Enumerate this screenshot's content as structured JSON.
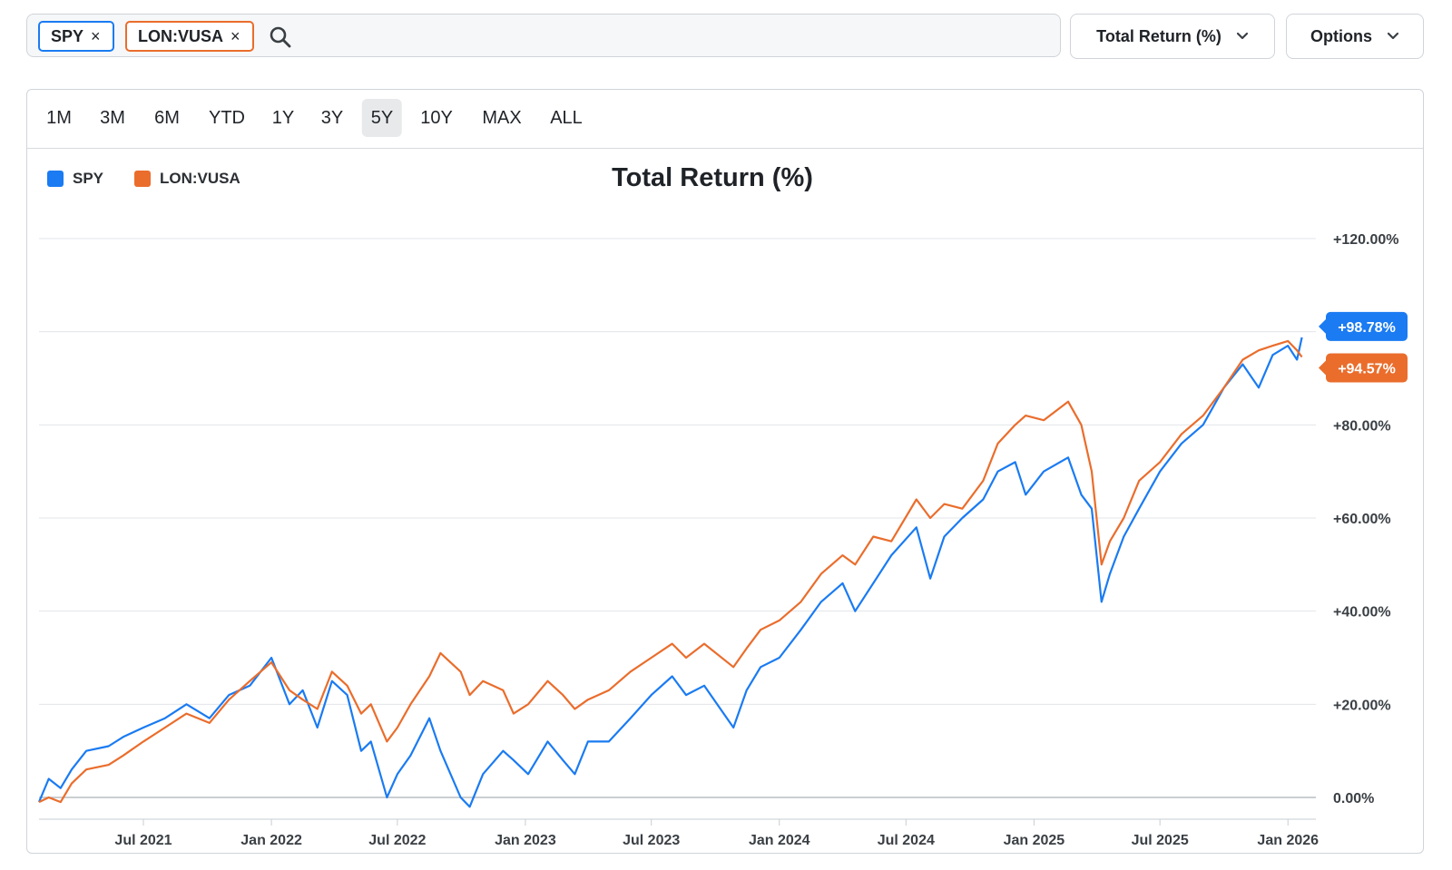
{
  "search": {
    "chips": [
      {
        "label": "SPY",
        "remove": "×"
      },
      {
        "label": "LON:VUSA",
        "remove": "×"
      }
    ]
  },
  "toolbar": {
    "metric_label": "Total Return (%)",
    "options_label": "Options"
  },
  "ranges": {
    "items": [
      "1M",
      "3M",
      "6M",
      "YTD",
      "1Y",
      "3Y",
      "5Y",
      "10Y",
      "MAX",
      "ALL"
    ],
    "active": "5Y"
  },
  "colors": {
    "spy": "#1a7bf2",
    "vusa": "#ea6d2c"
  },
  "chart_data": {
    "type": "line",
    "title": "Total Return (%)",
    "legend": [
      "SPY",
      "LON:VUSA"
    ],
    "legend_position": "top-left",
    "grid": true,
    "ylim": [
      -5,
      125
    ],
    "yticks": [
      0,
      20,
      40,
      60,
      80,
      100,
      120
    ],
    "ytick_labels": [
      "0.00%",
      "+20.00%",
      "+40.00%",
      "+60.00%",
      "+80.00%",
      "",
      "+120.00%"
    ],
    "x_range": [
      "2021-02-01",
      "2026-02-01"
    ],
    "xticks": [
      "2021-07-01",
      "2022-01-01",
      "2022-07-01",
      "2023-01-01",
      "2023-07-01",
      "2024-01-01",
      "2024-07-01",
      "2025-01-01",
      "2025-07-01",
      "2026-01-01"
    ],
    "xtick_labels": [
      "Jul 2021",
      "Jan 2022",
      "Jul 2022",
      "Jan 2023",
      "Jul 2023",
      "Jan 2024",
      "Jul 2024",
      "Jan 2025",
      "Jul 2025",
      "Jan 2026"
    ],
    "series": [
      {
        "name": "SPY",
        "last_label": "+98.78%",
        "points": [
          [
            "2021-02-01",
            -1
          ],
          [
            "2021-02-15",
            4
          ],
          [
            "2021-03-04",
            2
          ],
          [
            "2021-03-20",
            6
          ],
          [
            "2021-04-10",
            10
          ],
          [
            "2021-05-12",
            11
          ],
          [
            "2021-06-02",
            13
          ],
          [
            "2021-07-01",
            15
          ],
          [
            "2021-08-01",
            17
          ],
          [
            "2021-09-01",
            20
          ],
          [
            "2021-10-04",
            17
          ],
          [
            "2021-11-01",
            22
          ],
          [
            "2021-12-01",
            24
          ],
          [
            "2022-01-01",
            30
          ],
          [
            "2022-01-27",
            20
          ],
          [
            "2022-02-15",
            23
          ],
          [
            "2022-03-08",
            15
          ],
          [
            "2022-03-29",
            25
          ],
          [
            "2022-04-20",
            22
          ],
          [
            "2022-05-10",
            10
          ],
          [
            "2022-05-24",
            12
          ],
          [
            "2022-06-16",
            0
          ],
          [
            "2022-07-01",
            5
          ],
          [
            "2022-07-20",
            9
          ],
          [
            "2022-08-16",
            17
          ],
          [
            "2022-09-01",
            10
          ],
          [
            "2022-09-30",
            0
          ],
          [
            "2022-10-13",
            -2
          ],
          [
            "2022-11-01",
            5
          ],
          [
            "2022-11-30",
            10
          ],
          [
            "2022-12-15",
            8
          ],
          [
            "2023-01-05",
            5
          ],
          [
            "2023-02-02",
            12
          ],
          [
            "2023-02-24",
            8
          ],
          [
            "2023-03-13",
            5
          ],
          [
            "2023-04-01",
            12
          ],
          [
            "2023-05-01",
            12
          ],
          [
            "2023-06-01",
            17
          ],
          [
            "2023-07-01",
            22
          ],
          [
            "2023-07-31",
            26
          ],
          [
            "2023-08-20",
            22
          ],
          [
            "2023-09-15",
            24
          ],
          [
            "2023-10-27",
            15
          ],
          [
            "2023-11-15",
            23
          ],
          [
            "2023-12-05",
            28
          ],
          [
            "2024-01-01",
            30
          ],
          [
            "2024-02-01",
            36
          ],
          [
            "2024-03-01",
            42
          ],
          [
            "2024-04-01",
            46
          ],
          [
            "2024-04-19",
            40
          ],
          [
            "2024-05-15",
            46
          ],
          [
            "2024-06-10",
            52
          ],
          [
            "2024-07-16",
            58
          ],
          [
            "2024-08-05",
            47
          ],
          [
            "2024-08-25",
            56
          ],
          [
            "2024-09-20",
            60
          ],
          [
            "2024-10-20",
            64
          ],
          [
            "2024-11-10",
            70
          ],
          [
            "2024-12-05",
            72
          ],
          [
            "2024-12-20",
            65
          ],
          [
            "2025-01-15",
            70
          ],
          [
            "2025-02-19",
            73
          ],
          [
            "2025-03-10",
            65
          ],
          [
            "2025-03-25",
            62
          ],
          [
            "2025-04-08",
            42
          ],
          [
            "2025-04-20",
            48
          ],
          [
            "2025-05-10",
            56
          ],
          [
            "2025-06-01",
            62
          ],
          [
            "2025-07-01",
            70
          ],
          [
            "2025-08-01",
            76
          ],
          [
            "2025-09-01",
            80
          ],
          [
            "2025-10-01",
            88
          ],
          [
            "2025-10-28",
            93
          ],
          [
            "2025-11-20",
            88
          ],
          [
            "2025-12-10",
            95
          ],
          [
            "2026-01-01",
            97
          ],
          [
            "2026-01-14",
            94
          ],
          [
            "2026-01-21",
            98.78
          ]
        ]
      },
      {
        "name": "LON:VUSA",
        "last_label": "+94.57%",
        "points": [
          [
            "2021-02-01",
            -1
          ],
          [
            "2021-02-15",
            0
          ],
          [
            "2021-03-04",
            -1
          ],
          [
            "2021-03-20",
            3
          ],
          [
            "2021-04-10",
            6
          ],
          [
            "2021-05-12",
            7
          ],
          [
            "2021-06-02",
            9
          ],
          [
            "2021-07-01",
            12
          ],
          [
            "2021-08-01",
            15
          ],
          [
            "2021-09-01",
            18
          ],
          [
            "2021-10-04",
            16
          ],
          [
            "2021-11-01",
            21
          ],
          [
            "2021-12-01",
            25
          ],
          [
            "2022-01-01",
            29
          ],
          [
            "2022-01-27",
            23
          ],
          [
            "2022-02-15",
            21
          ],
          [
            "2022-03-08",
            19
          ],
          [
            "2022-03-29",
            27
          ],
          [
            "2022-04-20",
            24
          ],
          [
            "2022-05-10",
            18
          ],
          [
            "2022-05-24",
            20
          ],
          [
            "2022-06-16",
            12
          ],
          [
            "2022-07-01",
            15
          ],
          [
            "2022-07-20",
            20
          ],
          [
            "2022-08-16",
            26
          ],
          [
            "2022-09-01",
            31
          ],
          [
            "2022-09-30",
            27
          ],
          [
            "2022-10-13",
            22
          ],
          [
            "2022-11-01",
            25
          ],
          [
            "2022-11-30",
            23
          ],
          [
            "2022-12-15",
            18
          ],
          [
            "2023-01-05",
            20
          ],
          [
            "2023-02-02",
            25
          ],
          [
            "2023-02-24",
            22
          ],
          [
            "2023-03-13",
            19
          ],
          [
            "2023-04-01",
            21
          ],
          [
            "2023-05-01",
            23
          ],
          [
            "2023-06-01",
            27
          ],
          [
            "2023-07-01",
            30
          ],
          [
            "2023-07-31",
            33
          ],
          [
            "2023-08-20",
            30
          ],
          [
            "2023-09-15",
            33
          ],
          [
            "2023-10-27",
            28
          ],
          [
            "2023-11-15",
            32
          ],
          [
            "2023-12-05",
            36
          ],
          [
            "2024-01-01",
            38
          ],
          [
            "2024-02-01",
            42
          ],
          [
            "2024-03-01",
            48
          ],
          [
            "2024-04-01",
            52
          ],
          [
            "2024-04-19",
            50
          ],
          [
            "2024-05-15",
            56
          ],
          [
            "2024-06-10",
            55
          ],
          [
            "2024-07-16",
            64
          ],
          [
            "2024-08-05",
            60
          ],
          [
            "2024-08-25",
            63
          ],
          [
            "2024-09-20",
            62
          ],
          [
            "2024-10-20",
            68
          ],
          [
            "2024-11-10",
            76
          ],
          [
            "2024-12-05",
            80
          ],
          [
            "2024-12-20",
            82
          ],
          [
            "2025-01-15",
            81
          ],
          [
            "2025-02-19",
            85
          ],
          [
            "2025-03-10",
            80
          ],
          [
            "2025-03-25",
            70
          ],
          [
            "2025-04-08",
            50
          ],
          [
            "2025-04-20",
            55
          ],
          [
            "2025-05-10",
            60
          ],
          [
            "2025-06-01",
            68
          ],
          [
            "2025-07-01",
            72
          ],
          [
            "2025-08-01",
            78
          ],
          [
            "2025-09-01",
            82
          ],
          [
            "2025-10-01",
            88
          ],
          [
            "2025-10-28",
            94
          ],
          [
            "2025-11-20",
            96
          ],
          [
            "2025-12-10",
            97
          ],
          [
            "2026-01-01",
            98
          ],
          [
            "2026-01-14",
            96
          ],
          [
            "2026-01-21",
            94.57
          ]
        ]
      }
    ]
  }
}
